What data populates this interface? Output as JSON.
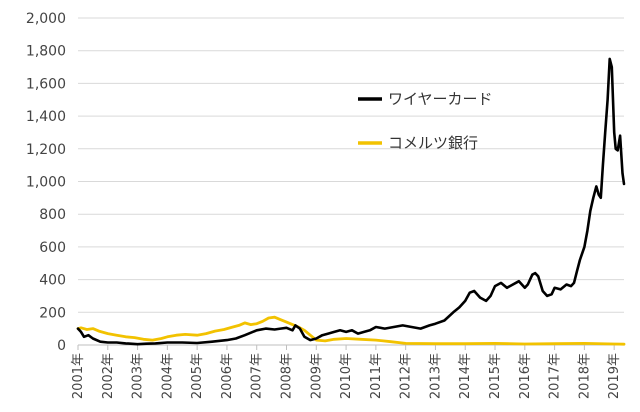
{
  "chart_data": {
    "type": "line",
    "title": "",
    "xlabel": "",
    "ylabel": "",
    "ylim": [
      0,
      2000
    ],
    "yticks": [
      "0",
      "200",
      "400",
      "600",
      "800",
      "1,000",
      "1,200",
      "1,400",
      "1,600",
      "1,800",
      "2,000"
    ],
    "ytick_values": [
      0,
      200,
      400,
      600,
      800,
      1000,
      1200,
      1400,
      1600,
      1800,
      2000
    ],
    "xlim": [
      2001.0,
      2019.33
    ],
    "xticks": [
      "2001年",
      "2002年",
      "2003年",
      "2004年",
      "2005年",
      "2006年",
      "2007年",
      "2008年",
      "2009年",
      "2010年",
      "2011年",
      "2012年",
      "2013年",
      "2014年",
      "2015年",
      "2016年",
      "2017年",
      "2018年",
      "2019年"
    ],
    "xtick_values": [
      2001,
      2002,
      2003,
      2004,
      2005,
      2006,
      2007,
      2008,
      2009,
      2010,
      2011,
      2012,
      2013,
      2014,
      2015,
      2016,
      2017,
      2018,
      2019
    ],
    "grid": "horizontal",
    "legend_position": "top-right",
    "series": [
      {
        "name": "ワイヤーカード",
        "color": "#000000",
        "x": [
          2001.0,
          2001.1,
          2001.2,
          2001.35,
          2001.5,
          2001.75,
          2002.0,
          2002.3,
          2002.6,
          2003.0,
          2003.3,
          2003.6,
          2004.0,
          2004.5,
          2005.0,
          2005.5,
          2006.0,
          2006.3,
          2006.6,
          2007.0,
          2007.3,
          2007.6,
          2007.8,
          2008.0,
          2008.2,
          2008.3,
          2008.45,
          2008.6,
          2008.8,
          2009.0,
          2009.2,
          2009.4,
          2009.6,
          2009.8,
          2010.0,
          2010.2,
          2010.4,
          2010.6,
          2010.8,
          2011.0,
          2011.3,
          2011.6,
          2011.9,
          2012.2,
          2012.5,
          2012.8,
          2013.0,
          2013.3,
          2013.6,
          2013.8,
          2014.0,
          2014.15,
          2014.3,
          2014.5,
          2014.7,
          2014.85,
          2015.0,
          2015.2,
          2015.4,
          2015.6,
          2015.8,
          2016.0,
          2016.1,
          2016.25,
          2016.35,
          2016.45,
          2016.6,
          2016.75,
          2016.9,
          2017.0,
          2017.2,
          2017.4,
          2017.55,
          2017.65,
          2017.75,
          2017.85,
          2018.0,
          2018.1,
          2018.2,
          2018.3,
          2018.4,
          2018.48,
          2018.55,
          2018.62,
          2018.7,
          2018.78,
          2018.85,
          2018.92,
          2019.0,
          2019.05,
          2019.12,
          2019.2,
          2019.28,
          2019.33
        ],
        "values": [
          100,
          80,
          50,
          60,
          40,
          20,
          15,
          15,
          10,
          5,
          8,
          10,
          15,
          15,
          12,
          20,
          30,
          40,
          60,
          90,
          100,
          95,
          100,
          105,
          90,
          120,
          100,
          50,
          30,
          40,
          60,
          70,
          80,
          90,
          80,
          90,
          70,
          80,
          90,
          110,
          100,
          110,
          120,
          110,
          100,
          120,
          130,
          150,
          200,
          230,
          270,
          320,
          330,
          290,
          270,
          300,
          360,
          380,
          350,
          370,
          390,
          350,
          370,
          430,
          440,
          420,
          330,
          300,
          310,
          350,
          340,
          370,
          360,
          380,
          450,
          520,
          600,
          700,
          820,
          900,
          970,
          920,
          900,
          1100,
          1300,
          1500,
          1750,
          1700,
          1300,
          1200,
          1190,
          1280,
          1050,
          985
        ]
      },
      {
        "name": "コメルツ銀行",
        "color": "#f2c200",
        "x": [
          2001.0,
          2001.1,
          2001.3,
          2001.5,
          2001.7,
          2002.0,
          2002.3,
          2002.6,
          2002.9,
          2003.2,
          2003.5,
          2003.8,
          2004.0,
          2004.3,
          2004.6,
          2005.0,
          2005.3,
          2005.6,
          2005.9,
          2006.2,
          2006.4,
          2006.6,
          2006.8,
          2007.0,
          2007.2,
          2007.4,
          2007.6,
          2007.8,
          2008.0,
          2008.2,
          2008.4,
          2008.6,
          2008.8,
          2009.0,
          2009.3,
          2009.6,
          2010.0,
          2010.5,
          2011.0,
          2011.5,
          2012.0,
          2013.0,
          2014.0,
          2015.0,
          2016.0,
          2017.0,
          2018.0,
          2019.0,
          2019.33
        ],
        "values": [
          100,
          105,
          95,
          100,
          85,
          70,
          60,
          50,
          45,
          35,
          30,
          40,
          50,
          60,
          65,
          60,
          70,
          85,
          95,
          110,
          120,
          135,
          125,
          130,
          145,
          165,
          170,
          155,
          140,
          125,
          110,
          90,
          60,
          30,
          25,
          35,
          40,
          35,
          30,
          20,
          10,
          8,
          8,
          10,
          6,
          8,
          10,
          6,
          5
        ]
      }
    ]
  }
}
